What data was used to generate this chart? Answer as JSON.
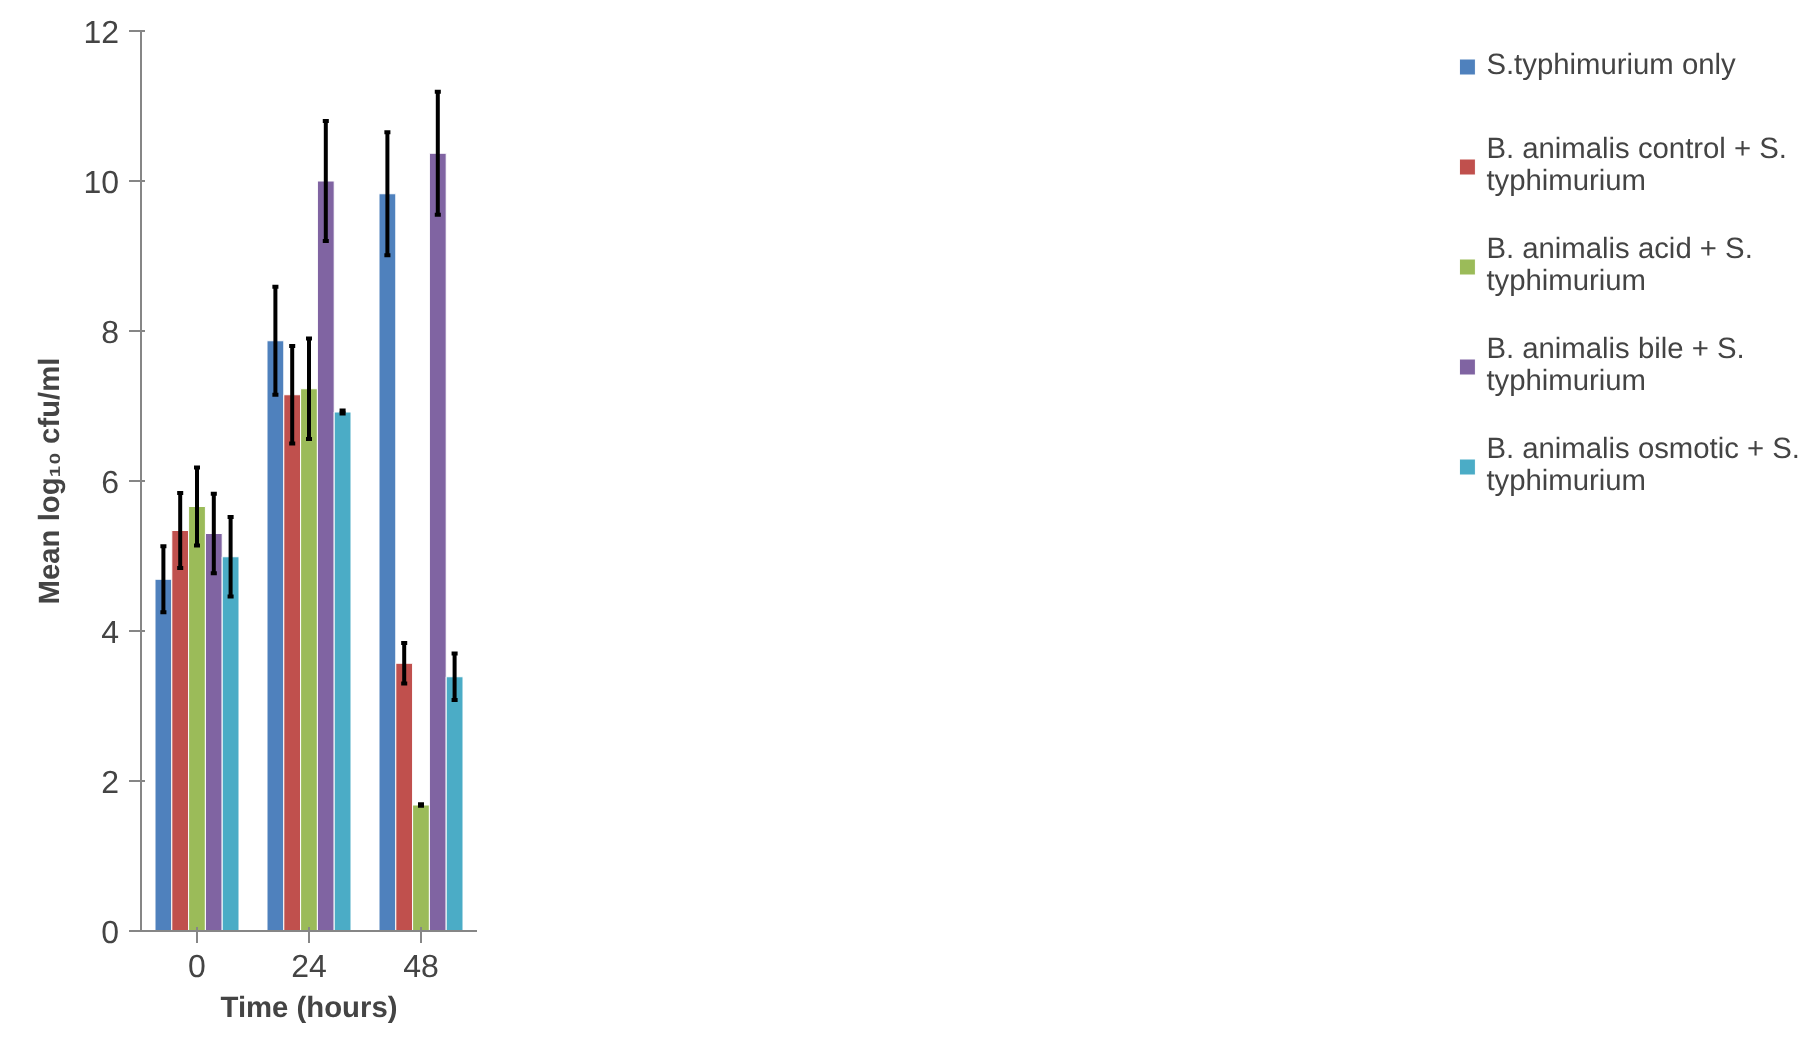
{
  "chart_data": {
    "type": "bar",
    "xlabel": "Time (hours)",
    "ylabel": "Mean log₁₀ cfu/ml",
    "categories": [
      "0",
      "24",
      "48"
    ],
    "ylim": [
      0,
      12
    ],
    "yticks": [
      0,
      2,
      4,
      6,
      8,
      10,
      12
    ],
    "grid": false,
    "legend": "right",
    "series": [
      {
        "name": "S.typhimurium only",
        "color": "#4f81bd",
        "values": [
          4.69,
          7.87,
          9.83
        ],
        "errors": [
          0.44,
          0.72,
          0.82
        ]
      },
      {
        "name": "B. animalis control + S. typhimurium",
        "color": "#c0504d",
        "values": [
          5.34,
          7.15,
          3.57
        ],
        "errors": [
          0.5,
          0.65,
          0.27
        ]
      },
      {
        "name": "B. animalis acid + S. typhimurium",
        "color": "#9bbb59",
        "values": [
          5.66,
          7.23,
          1.68
        ],
        "errors": [
          0.52,
          0.67,
          0.01
        ]
      },
      {
        "name": "B. animalis bile + S. typhimurium",
        "color": "#8064a2",
        "values": [
          5.3,
          10.0,
          10.37
        ],
        "errors": [
          0.53,
          0.8,
          0.82
        ]
      },
      {
        "name": "B. animalis osmotic + S. typhimurium",
        "color": "#4bacc6",
        "values": [
          4.99,
          6.92,
          3.39
        ],
        "errors": [
          0.53,
          0.02,
          0.31
        ]
      }
    ]
  }
}
